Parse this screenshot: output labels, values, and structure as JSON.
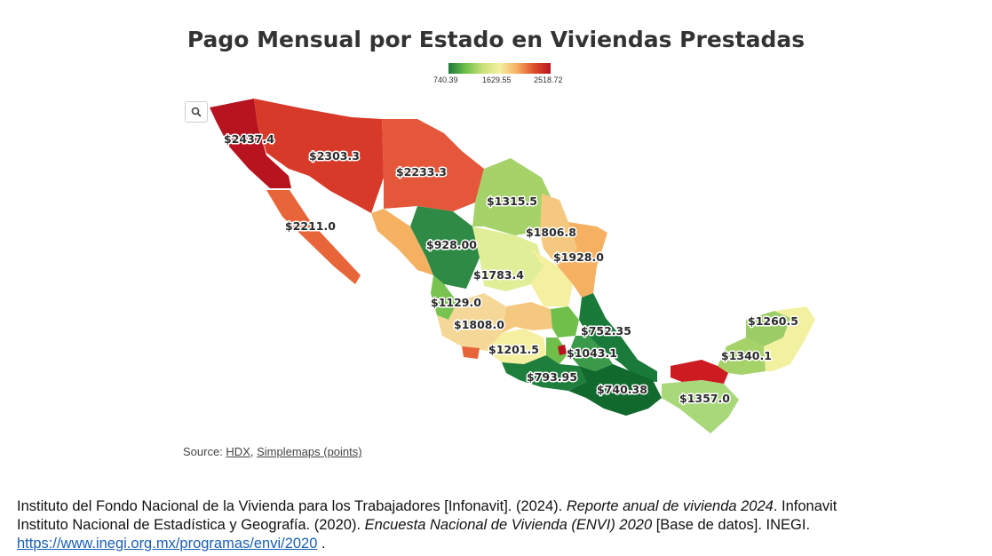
{
  "title": "Pago Mensual por Estado en Viviendas Prestadas",
  "legend": {
    "min_label": "740.39",
    "mid_label": "1629.55",
    "max_label": "2518.72",
    "colors": [
      "#1a7a3a",
      "#6fbf4a",
      "#c8e07a",
      "#f5efa0",
      "#f5b062",
      "#e0502a",
      "#b81420"
    ]
  },
  "map": {
    "region_labels": [
      "$2437.4",
      "$2303.3",
      "$2233.3",
      "$2211.0",
      "$1315.5",
      "$928.00",
      "$1806.8",
      "$1928.0",
      "$1783.4",
      "$1129.0",
      "$1808.0",
      "$752.35",
      "$1201.5",
      "$1043.1",
      "$793.95",
      "$740.38",
      "$1260.5",
      "$1340.1",
      "$1357.0"
    ]
  },
  "source": {
    "prefix": "Source: ",
    "link1": "HDX",
    "separator": ", ",
    "link2": "Simplemaps (points)"
  },
  "citation": {
    "line1_a": "Instituto del Fondo Nacional de la Vivienda para los Trabajadores [Infonavit]. (2024). ",
    "line1_italic": "Reporte anual de vivienda 2024",
    "line1_b": ". Infonavit",
    "line2_a": "Instituto Nacional de Estadística y Geografía. (2020). ",
    "line2_italic": "Encuesta Nacional de Vivienda (ENVI) 2020",
    "line2_b": " [Base de datos]. INEGI.",
    "url": "https://www.inegi.org.mx/programas/envi/2020",
    "url_suffix": " ."
  }
}
